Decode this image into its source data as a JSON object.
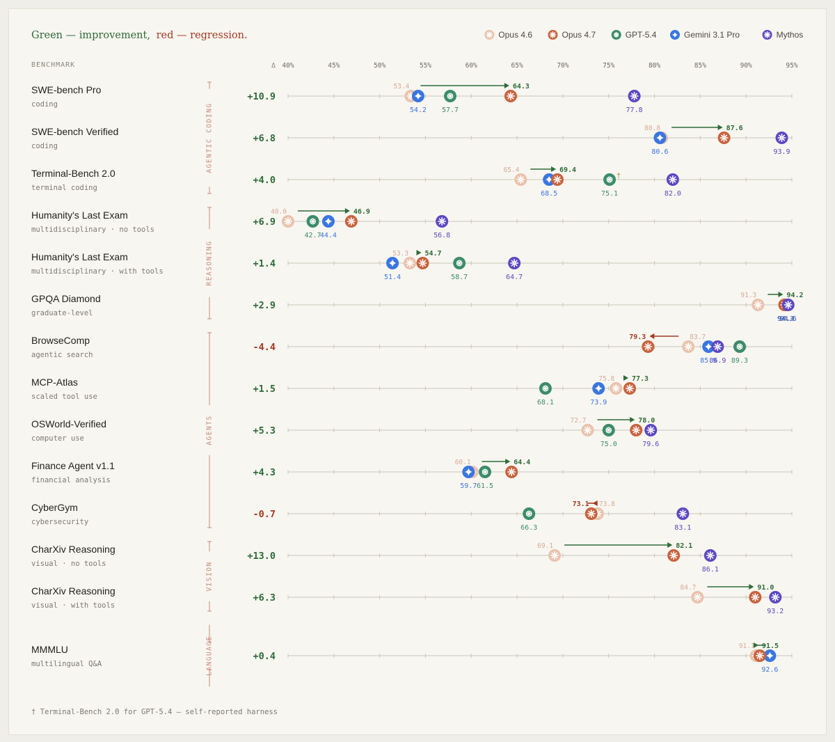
{
  "header": {
    "title_green": "Green — improvement,",
    "title_red": "red — regression.",
    "legend": [
      {
        "key": "opus46",
        "label": "Opus 4.6",
        "color": "#e8c2ad",
        "icon": "claude-icon"
      },
      {
        "key": "opus47",
        "label": "Opus 4.7",
        "color": "#c8623e",
        "icon": "claude-icon"
      },
      {
        "key": "gpt54",
        "label": "GPT-5.4",
        "color": "#3d8c6a",
        "icon": "openai-icon"
      },
      {
        "key": "gemini",
        "label": "Gemini 3.1 Pro",
        "color": "#3a76e0",
        "icon": "gemini-icon"
      },
      {
        "key": "mythos",
        "label": "Mythos",
        "color": "#5b48c2",
        "icon": "claude-icon"
      }
    ]
  },
  "colors": {
    "improve": "#2e6b3a",
    "regress": "#a33a22",
    "group": "#c98a78",
    "axis": "#c9c6b8"
  },
  "column_headers": {
    "benchmark": "BENCHMARK",
    "delta": "Δ"
  },
  "footnote": "† Terminal-Bench 2.0 for GPT-5.4 — self-reported harness",
  "chart_data": {
    "type": "scatter",
    "xlabel": "",
    "xlim": [
      40,
      95
    ],
    "x_ticks": [
      40,
      45,
      50,
      55,
      60,
      65,
      70,
      75,
      80,
      85,
      90,
      95
    ],
    "x_tick_labels": [
      "40%",
      "45%",
      "50%",
      "55%",
      "60%",
      "65%",
      "70%",
      "75%",
      "80%",
      "85%",
      "90%",
      "95%"
    ],
    "groups": [
      {
        "label": "AGENTIC CODING",
        "rows": [
          0,
          2
        ]
      },
      {
        "label": "REASONING",
        "rows": [
          3,
          5
        ]
      },
      {
        "label": "AGENTS",
        "rows": [
          6,
          10
        ]
      },
      {
        "label": "VISION",
        "rows": [
          11,
          12
        ]
      },
      {
        "label": "LANGUAGE",
        "rows": [
          13,
          13
        ]
      }
    ],
    "rows": [
      {
        "name": "SWE-bench Pro",
        "sub": "coding",
        "delta": "+10.9",
        "opus46": 53.4,
        "opus47": 64.3,
        "gpt54": 57.7,
        "gemini": 54.2,
        "mythos": 77.8
      },
      {
        "name": "SWE-bench Verified",
        "sub": "coding",
        "delta": "+6.8",
        "opus46": 80.8,
        "opus47": 87.6,
        "gemini": 80.6,
        "mythos": 93.9
      },
      {
        "name": "Terminal-Bench 2.0",
        "sub": "terminal coding",
        "delta": "+4.0",
        "opus46": 65.4,
        "opus47": 69.4,
        "gpt54": 75.1,
        "gemini": 68.5,
        "mythos": 82.0,
        "dagger": "†"
      },
      {
        "name": "Humanity's Last Exam",
        "sub": "multidisciplinary · no tools",
        "delta": "+6.9",
        "opus46": 40.0,
        "opus47": 46.9,
        "gpt54": 42.7,
        "gemini": 44.4,
        "mythos": 56.8
      },
      {
        "name": "Humanity's Last Exam",
        "sub": "multidisciplinary · with tools",
        "delta": "+1.4",
        "opus46": 53.3,
        "opus47": 54.7,
        "gpt54": 58.7,
        "gemini": 51.4,
        "mythos": 64.7
      },
      {
        "name": "GPQA Diamond",
        "sub": "graduate-level",
        "delta": "+2.9",
        "opus46": 91.3,
        "opus47": 94.2,
        "gpt54": 94.4,
        "gemini": 94.3,
        "mythos": 94.6
      },
      {
        "name": "BrowseComp",
        "sub": "agentic search",
        "delta": "-4.4",
        "opus46": 83.7,
        "opus47": 79.3,
        "gpt54": 89.3,
        "gemini": 85.9,
        "mythos": 86.9
      },
      {
        "name": "MCP-Atlas",
        "sub": "scaled tool use",
        "delta": "+1.5",
        "opus46": 75.8,
        "opus47": 77.3,
        "gpt54": 68.1,
        "gemini": 73.9
      },
      {
        "name": "OSWorld-Verified",
        "sub": "computer use",
        "delta": "+5.3",
        "opus46": 72.7,
        "opus47": 78.0,
        "gpt54": 75.0,
        "mythos": 79.6
      },
      {
        "name": "Finance Agent v1.1",
        "sub": "financial analysis",
        "delta": "+4.3",
        "opus46": 60.1,
        "opus47": 64.4,
        "gpt54": 61.5,
        "gemini": 59.7
      },
      {
        "name": "CyberGym",
        "sub": "cybersecurity",
        "delta": "-0.7",
        "opus46": 73.8,
        "opus47": 73.1,
        "gpt54": 66.3,
        "mythos": 83.1
      },
      {
        "name": "CharXiv Reasoning",
        "sub": "visual · no tools",
        "delta": "+13.0",
        "opus46": 69.1,
        "opus47": 82.1,
        "mythos": 86.1
      },
      {
        "name": "CharXiv Reasoning",
        "sub": "visual · with tools",
        "delta": "+6.3",
        "opus46": 84.7,
        "opus47": 91.0,
        "mythos": 93.2
      },
      {
        "name": "MMMLU",
        "sub": "multilingual Q&A",
        "delta": "+0.4",
        "opus46": 91.1,
        "opus47": 91.5,
        "gemini": 92.6
      }
    ]
  }
}
